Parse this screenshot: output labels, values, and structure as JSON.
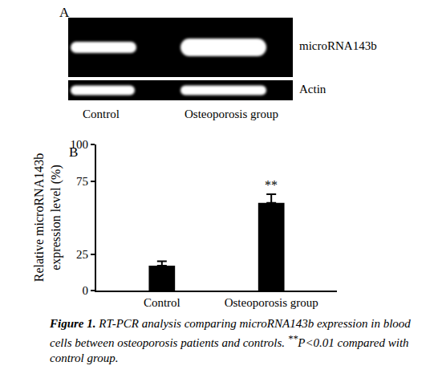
{
  "figure": {
    "panel_labels": [
      "A",
      "B"
    ],
    "caption": {
      "label": "Figure 1.",
      "text": "RT-PCR analysis comparing microRNA143b expression in blood cells between osteoporosis patients and controls.",
      "note_mark": "**",
      "note": "P<0.01 compared with control group."
    }
  },
  "gel": {
    "lanes": [
      "Control",
      "Osteoporosis group"
    ],
    "rows": [
      "microRNA143b",
      "Actin"
    ]
  },
  "chart_data": {
    "type": "bar",
    "categories": [
      "Control",
      "Osteoporosis group"
    ],
    "values": [
      17,
      60
    ],
    "errors": [
      3,
      6
    ],
    "color": "#000000",
    "ylabel": [
      "Relative microRNA143b",
      "expression level (%)"
    ],
    "ylim": [
      0,
      100
    ],
    "yticks": [
      0,
      25,
      75,
      100
    ],
    "grid": false,
    "annotations": [
      {
        "category": "Osteoporosis group",
        "text": "**"
      }
    ]
  }
}
